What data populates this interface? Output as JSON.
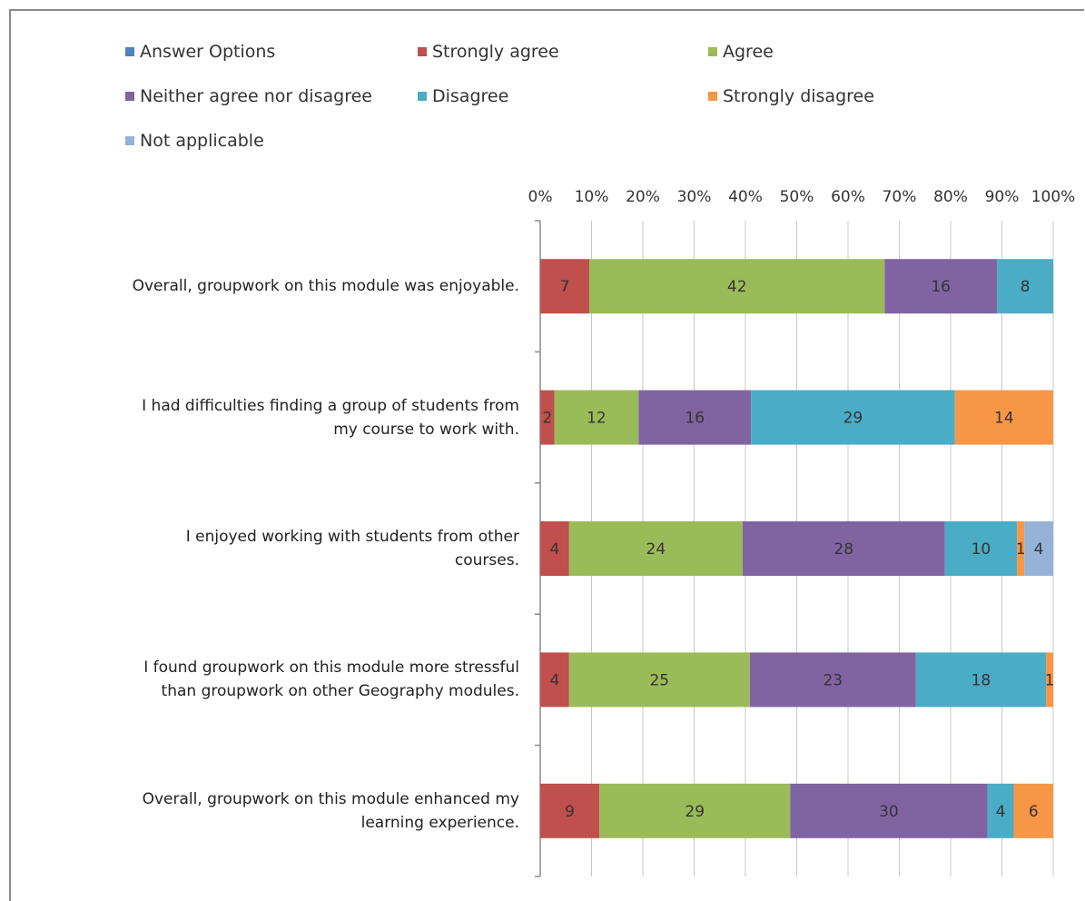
{
  "chart_data": {
    "type": "bar",
    "orientation": "horizontal",
    "stacked": true,
    "normalized": true,
    "categories": [
      "Overall, groupwork on this module was enjoyable.",
      "I had difficulties finding a group of students from my course to work with.",
      "I enjoyed working with students from other courses.",
      "I found groupwork on this module more stressful than groupwork on other Geography modules.",
      "Overall, groupwork on this module enhanced my learning experience."
    ],
    "category_lines": [
      [
        "Overall, groupwork on this module was enjoyable."
      ],
      [
        "I had difficulties finding a group of students from",
        "my course to work with."
      ],
      [
        "I enjoyed working with students from other",
        "courses."
      ],
      [
        "I found groupwork on this module more stressful",
        "than groupwork on other Geography modules."
      ],
      [
        "Overall, groupwork on this module enhanced my",
        "learning experience."
      ]
    ],
    "series": [
      {
        "name": "Answer Options",
        "color": "#4f81bd",
        "values": [
          0,
          0,
          0,
          0,
          0
        ]
      },
      {
        "name": "Strongly agree",
        "color": "#c0504d",
        "values": [
          7,
          2,
          4,
          4,
          9
        ]
      },
      {
        "name": "Agree",
        "color": "#9bbb59",
        "values": [
          42,
          12,
          24,
          25,
          29
        ]
      },
      {
        "name": "Neither agree nor disagree",
        "color": "#8064a2",
        "values": [
          16,
          16,
          28,
          23,
          30
        ]
      },
      {
        "name": "Disagree",
        "color": "#4bacc6",
        "values": [
          8,
          29,
          10,
          18,
          4
        ]
      },
      {
        "name": "Strongly disagree",
        "color": "#f79646",
        "values": [
          0,
          14,
          1,
          1,
          6
        ]
      },
      {
        "name": "Not applicable",
        "color": "#95b3d7",
        "values": [
          0,
          0,
          4,
          0,
          0
        ]
      }
    ],
    "x_ticks": [
      "0%",
      "10%",
      "20%",
      "30%",
      "40%",
      "50%",
      "60%",
      "70%",
      "80%",
      "90%",
      "100%"
    ],
    "xlim": [
      0,
      100
    ],
    "legend_position": "top",
    "grid": true
  }
}
